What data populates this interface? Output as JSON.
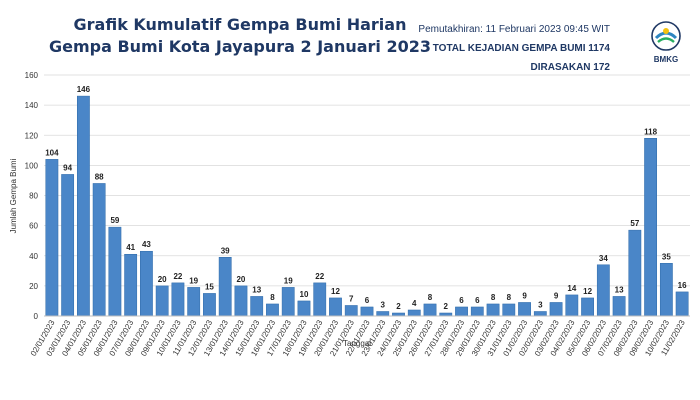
{
  "header": {
    "title_line1": "Grafik Kumulatif Gempa Bumi Harian",
    "title_line2": "Gempa Bumi Kota Jayapura 2 Januari 2023",
    "updated": "Pemutakhiran: 11 Februari 2023 09:45 WIT",
    "total": "TOTAL KEJADIAN GEMPA BUMI 1174",
    "felt": "DIRASAKAN 172",
    "logo_text": "BMKG"
  },
  "colors": {
    "bar": "#4a86c8",
    "bar_edge": "#2e6aa8",
    "grid": "#d9d9d9",
    "title": "#1f3864"
  },
  "chart_data": {
    "type": "bar",
    "title": "Grafik Kumulatif Gempa Bumi Harian",
    "subtitle": "Gempa Bumi Kota Jayapura 2 Januari 2023",
    "xlabel": "Tanggal",
    "ylabel": "Jumlah Gempa Bumi",
    "ylim": [
      0,
      160
    ],
    "yticks": [
      0,
      20,
      40,
      60,
      80,
      100,
      120,
      140,
      160
    ],
    "grid": true,
    "legend": "none",
    "categories": [
      "02/01/2023",
      "03/01/2023",
      "04/01/2023",
      "05/01/2023",
      "06/01/2023",
      "07/01/2023",
      "08/01/2023",
      "09/01/2023",
      "10/01/2023",
      "11/01/2023",
      "12/01/2023",
      "13/01/2023",
      "14/01/2023",
      "15/01/2023",
      "16/01/2023",
      "17/01/2023",
      "18/01/2023",
      "19/01/2023",
      "20/01/2023",
      "21/01/2023",
      "22/01/2023",
      "23/01/2023",
      "24/01/2023",
      "25/01/2023",
      "26/01/2023",
      "27/01/2023",
      "28/01/2023",
      "29/01/2023",
      "30/01/2023",
      "31/01/2023",
      "01/02/2023",
      "02/02/2023",
      "03/02/2023",
      "04/02/2023",
      "05/02/2023",
      "06/02/2023",
      "07/02/2023",
      "08/02/2023",
      "09/02/2023",
      "10/02/2023",
      "11/02/2023"
    ],
    "values": [
      104,
      94,
      146,
      88,
      59,
      41,
      43,
      20,
      22,
      19,
      15,
      39,
      20,
      13,
      8,
      19,
      10,
      22,
      12,
      7,
      6,
      3,
      2,
      4,
      8,
      2,
      6,
      6,
      8,
      8,
      9,
      3,
      9,
      14,
      12,
      34,
      13,
      57,
      118,
      35,
      16
    ]
  }
}
